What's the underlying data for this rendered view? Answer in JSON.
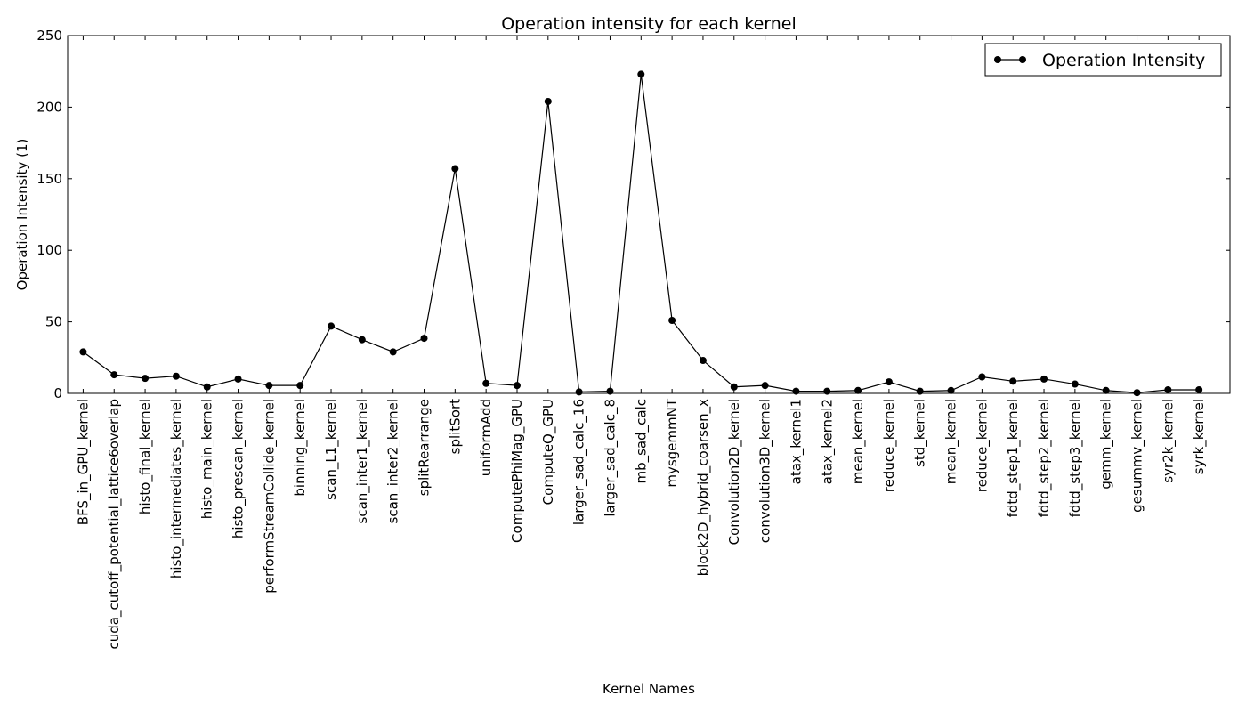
{
  "chart_data": {
    "type": "line",
    "title": "Operation intensity for each kernel",
    "xlabel": "Kernel Names",
    "ylabel": "Operation Intensity (1)",
    "ylim": [
      0,
      250
    ],
    "yticks": [
      0,
      50,
      100,
      150,
      200,
      250
    ],
    "grid": false,
    "legend_position": "top-right",
    "line_color": "#000000",
    "categories": [
      "BFS_in_GPU_kernel",
      "cuda_cutoff_potential_lattice6overlap",
      "histo_final_kernel",
      "histo_intermediates_kernel",
      "histo_main_kernel",
      "histo_prescan_kernel",
      "performStreamCollide_kernel",
      "binning_kernel",
      "scan_L1_kernel",
      "scan_inter1_kernel",
      "scan_inter2_kernel",
      "splitRearrange",
      "splitSort",
      "uniformAdd",
      "ComputePhiMag_GPU",
      "ComputeQ_GPU",
      "larger_sad_calc_16",
      "larger_sad_calc_8",
      "mb_sad_calc",
      "mysgemmNT",
      "block2D_hybrid_coarsen_x",
      "Convolution2D_kernel",
      "convolution3D_kernel",
      "atax_kernel1",
      "atax_kernel2",
      "mean_kernel",
      "reduce_kernel",
      "std_kernel",
      "mean_kernel",
      "reduce_kernel",
      "fdtd_step1_kernel",
      "fdtd_step2_kernel",
      "fdtd_step3_kernel",
      "gemm_kernel",
      "gesummv_kernel",
      "syr2k_kernel",
      "syrk_kernel"
    ],
    "series": [
      {
        "name": "Operation Intensity",
        "values": [
          29,
          13,
          10.5,
          12,
          4.5,
          10,
          5.5,
          5.5,
          47,
          37.5,
          29,
          38.5,
          157,
          7,
          5.5,
          204,
          1,
          1.5,
          223,
          51,
          23,
          4.5,
          5.5,
          1.5,
          1.5,
          2,
          8,
          1.5,
          2,
          11.5,
          8.5,
          10,
          6.5,
          2,
          0.5,
          2.5,
          2.5
        ]
      }
    ]
  }
}
